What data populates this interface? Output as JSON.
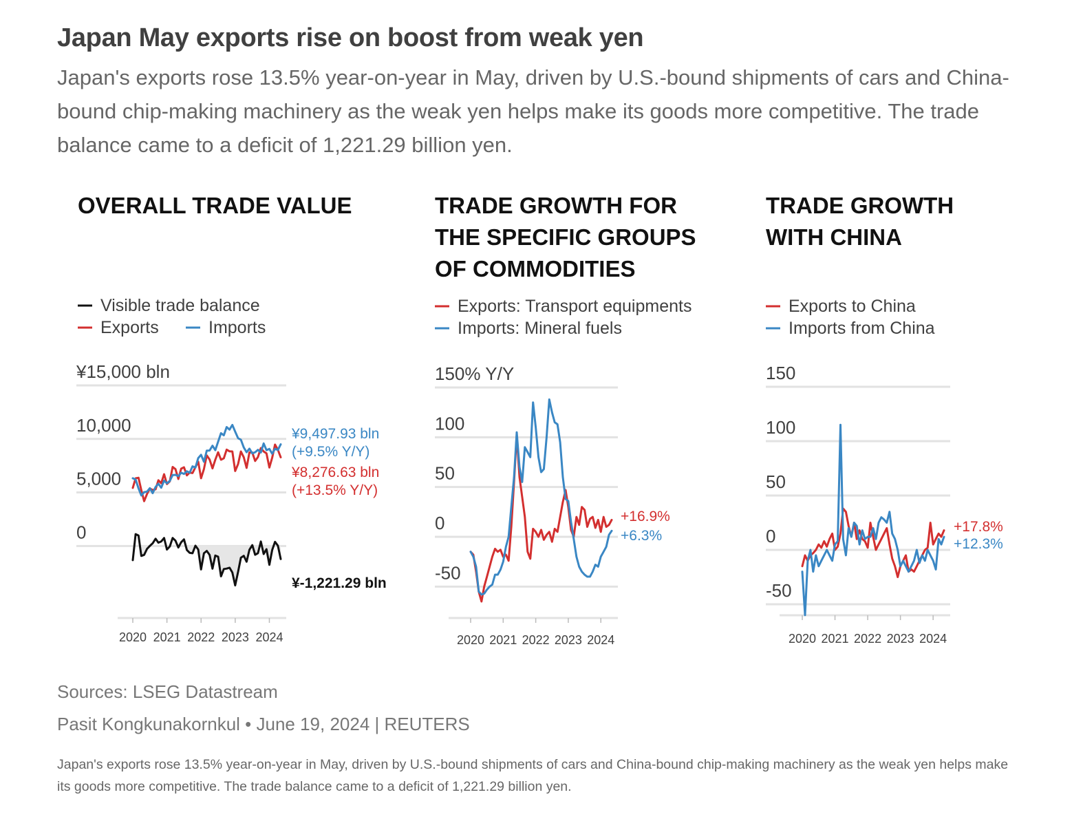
{
  "headline": "Japan May exports rise on boost from weak yen",
  "subheadline": "Japan's exports rose 13.5% year-on-year in May, driven by U.S.-bound shipments of cars and China-bound chip-making machinery as the weak yen helps make its goods more competitive. The trade balance came to a deficit of 1,221.29 billion yen.",
  "sources": "Sources: LSEG Datastream",
  "byline": "Pasit Kongkunakornkul • June 19, 2024 | REUTERS",
  "caption": "Japan's exports rose 13.5% year-on-year in May, driven by U.S.-bound shipments of cars and China-bound chip-making machinery as the weak yen helps make its goods more competitive. The trade balance came to a deficit of 1,221.29 billion yen.",
  "colors": {
    "exports": "#d32f2f",
    "imports": "#3a87c4",
    "balance": "#111111",
    "deficit_fill": "#e6e6e6",
    "grid": "#e2e2e2"
  },
  "chart_data": [
    {
      "type": "line",
      "title_lines": [
        "OVERALL TRADE VALUE"
      ],
      "legend": [
        {
          "label": "Visible trade balance",
          "color": "#111111"
        },
        {
          "label": "Exports",
          "color": "#d32f2f"
        },
        {
          "label": "Imports",
          "color": "#3a87c4"
        }
      ],
      "y_ticks": [
        {
          "label": "¥15,000 bln",
          "value": 15000
        },
        {
          "label": "10,000",
          "value": 10000
        },
        {
          "label": "5,000",
          "value": 5000
        },
        {
          "label": "0",
          "value": 0
        }
      ],
      "x_ticks": [
        "2020",
        "2021",
        "2022",
        "2023",
        "2024"
      ],
      "x_range": [
        "2020-01",
        "2024-05"
      ],
      "end_labels": [
        {
          "text": "¥9,497.93 bln",
          "series": "Imports"
        },
        {
          "text": "(+9.5% Y/Y)",
          "series": "Imports"
        },
        {
          "text": "¥8,276.63 bln",
          "series": "Exports"
        },
        {
          "text": "(+13.5% Y/Y)",
          "series": "Exports"
        },
        {
          "text": "¥-1,221.29 bln",
          "series": "Visible trade balance"
        }
      ],
      "series": [
        {
          "name": "Exports",
          "values": [
            5430,
            6320,
            6370,
            5210,
            4190,
            4860,
            5370,
            5230,
            5290,
            6140,
            5860,
            6710,
            5780,
            6040,
            7380,
            7180,
            6260,
            7220,
            7350,
            6600,
            6860,
            6810,
            7360,
            7880,
            6330,
            7190,
            8460,
            8080,
            7250,
            8060,
            8750,
            8060,
            8190,
            9000,
            8840,
            8830,
            7000,
            7650,
            8830,
            8290,
            7290,
            8740,
            8730,
            7940,
            8310,
            9150,
            8830,
            8650,
            7330,
            8250,
            9470,
            8980,
            8280
          ]
        },
        {
          "name": "Imports",
          "values": [
            6330,
            6210,
            5390,
            4720,
            5030,
            5080,
            5400,
            4930,
            5510,
            5820,
            5440,
            6110,
            5850,
            6080,
            6630,
            6640,
            6530,
            6840,
            6730,
            6980,
            6850,
            7440,
            7330,
            8210,
            8520,
            7870,
            8910,
            8920,
            9370,
            8950,
            9740,
            10540,
            10340,
            11110,
            10870,
            11310,
            10680,
            10070,
            9930,
            9200,
            8760,
            9090,
            8650,
            8760,
            8980,
            8730,
            9580,
            8950,
            9070,
            8620,
            9080,
            8970,
            9500
          ]
        },
        {
          "name": "Visible trade balance",
          "values": [
            -1320,
            1110,
            980,
            -930,
            -830,
            -270,
            10,
            250,
            680,
            310,
            420,
            750,
            -330,
            -40,
            750,
            500,
            -140,
            350,
            620,
            -380,
            -640,
            -680,
            30,
            -330,
            -2190,
            -680,
            -460,
            -830,
            -2120,
            -890,
            -1000,
            -2830,
            -2150,
            -2110,
            -2030,
            -2480,
            -3680,
            -2420,
            -1100,
            -920,
            -1470,
            -350,
            80,
            -820,
            -670,
            420,
            -750,
            -300,
            -1760,
            -370,
            390,
            30,
            -1220
          ]
        }
      ]
    },
    {
      "type": "line",
      "title_lines": [
        "TRADE GROWTH FOR",
        "THE SPECIFIC GROUPS",
        "OF COMMODITIES"
      ],
      "legend": [
        {
          "label": "Exports: Transport equipments",
          "color": "#d32f2f"
        },
        {
          "label": "Imports: Mineral fuels",
          "color": "#3a87c4"
        }
      ],
      "y_ticks": [
        {
          "label": "150% Y/Y",
          "value": 150
        },
        {
          "label": "100",
          "value": 100
        },
        {
          "label": "50",
          "value": 50
        },
        {
          "label": "0",
          "value": 0
        },
        {
          "label": "-50",
          "value": -50
        }
      ],
      "x_ticks": [
        "2020",
        "2021",
        "2022",
        "2023",
        "2024"
      ],
      "x_range": [
        "2020-01",
        "2024-05"
      ],
      "end_labels": [
        {
          "text": "+16.9%",
          "series": "Exports: Transport equipments"
        },
        {
          "text": "+6.3%",
          "series": "Imports: Mineral fuels"
        }
      ],
      "series": [
        {
          "name": "Exports: Transport equipments",
          "values": [
            -15,
            -18,
            -35,
            -55,
            -65,
            -50,
            -40,
            -30,
            -20,
            -12,
            -15,
            -13,
            -20,
            -18,
            -24,
            10,
            55,
            102,
            60,
            40,
            20,
            -15,
            -22,
            8,
            5,
            0,
            7,
            -3,
            2,
            5,
            -5,
            8,
            5,
            20,
            35,
            47,
            30,
            7,
            0,
            20,
            12,
            30,
            27,
            10,
            18,
            20,
            9,
            17,
            5,
            20,
            10,
            12,
            17
          ]
        },
        {
          "name": "Imports: Mineral fuels",
          "values": [
            -15,
            -20,
            -30,
            -55,
            -58,
            -57,
            -53,
            -50,
            -48,
            -38,
            -38,
            -33,
            -25,
            -10,
            0,
            30,
            60,
            105,
            70,
            55,
            90,
            85,
            80,
            135,
            110,
            80,
            65,
            68,
            100,
            138,
            125,
            115,
            113,
            95,
            60,
            38,
            36,
            15,
            -2,
            -20,
            -30,
            -35,
            -38,
            -40,
            -40,
            -35,
            -28,
            -30,
            -20,
            -15,
            -10,
            2,
            6
          ]
        }
      ]
    },
    {
      "type": "line",
      "title_lines": [
        "TRADE GROWTH",
        "WITH CHINA"
      ],
      "legend": [
        {
          "label": "Exports to China",
          "color": "#d32f2f"
        },
        {
          "label": "Imports from China",
          "color": "#3a87c4"
        }
      ],
      "y_ticks": [
        {
          "label": "150",
          "value": 150
        },
        {
          "label": "100",
          "value": 100
        },
        {
          "label": "50",
          "value": 50
        },
        {
          "label": "0",
          "value": 0
        },
        {
          "label": "-50",
          "value": -50
        }
      ],
      "x_ticks": [
        "2020",
        "2021",
        "2022",
        "2023",
        "2024"
      ],
      "x_range": [
        "2020-01",
        "2024-05"
      ],
      "end_labels": [
        {
          "text": "+17.8%",
          "series": "Exports to China"
        },
        {
          "text": "+12.3%",
          "series": "Imports from China"
        }
      ],
      "series": [
        {
          "name": "Exports to China",
          "values": [
            -15,
            -5,
            -10,
            -5,
            -3,
            0,
            5,
            2,
            8,
            3,
            10,
            15,
            0,
            3,
            15,
            38,
            35,
            22,
            12,
            25,
            10,
            18,
            10,
            8,
            2,
            25,
            12,
            0,
            5,
            10,
            15,
            20,
            5,
            -8,
            -15,
            -25,
            -15,
            -10,
            -5,
            -20,
            -18,
            -20,
            -15,
            -10,
            -5,
            0,
            2,
            25,
            5,
            10,
            15,
            12,
            18
          ]
        },
        {
          "name": "Imports from China",
          "values": [
            -20,
            -60,
            -10,
            0,
            -20,
            -5,
            -15,
            -10,
            -5,
            0,
            -5,
            -10,
            5,
            8,
            115,
            10,
            -5,
            20,
            12,
            25,
            22,
            5,
            18,
            10,
            12,
            12,
            20,
            10,
            25,
            30,
            28,
            25,
            35,
            15,
            10,
            0,
            -15,
            -10,
            -15,
            -20,
            -15,
            -10,
            0,
            -12,
            -5,
            -10,
            0,
            -5,
            -10,
            -18,
            10,
            5,
            12
          ]
        }
      ]
    }
  ]
}
